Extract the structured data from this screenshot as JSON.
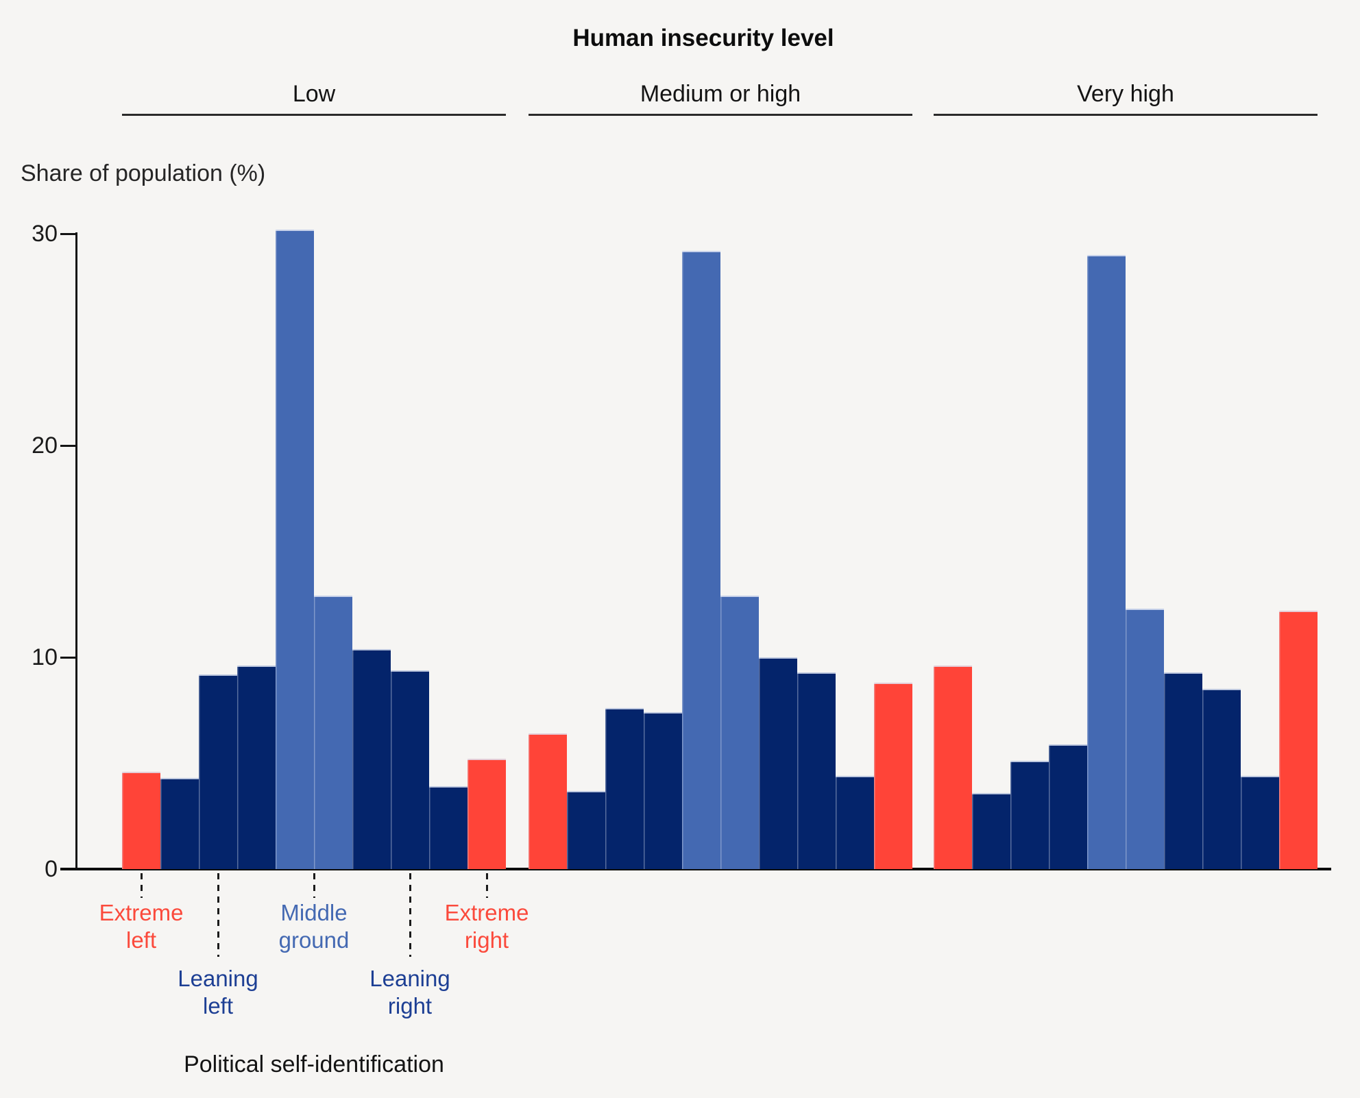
{
  "colors": {
    "red": "#ff4438",
    "navy": "#04246b",
    "blue": "#4469b2",
    "background": "#f6f5f3",
    "axis": "#141414",
    "label_red": "#fb4a3c",
    "label_navy": "#1d3f94",
    "label_blue": "#4469b2",
    "text": "#141414"
  },
  "chart_data": {
    "type": "bar",
    "title": "Human insecurity level",
    "ylabel": "Share of population (%)",
    "xlabel": "Political self-identification",
    "ylim": [
      0,
      30
    ],
    "yticks": [
      0,
      10,
      20,
      30
    ],
    "grid": false,
    "legend": "none",
    "groups": [
      {
        "label": "Low",
        "values": [
          4.6,
          4.3,
          9.2,
          9.6,
          30.2,
          12.9,
          10.4,
          9.4,
          3.9,
          5.2
        ]
      },
      {
        "label": "Medium or high",
        "values": [
          6.4,
          3.7,
          7.6,
          7.4,
          29.2,
          12.9,
          10.0,
          9.3,
          4.4,
          8.8
        ]
      },
      {
        "label": "Very high",
        "values": [
          9.6,
          3.6,
          5.1,
          5.9,
          29.0,
          12.3,
          9.3,
          8.5,
          4.4,
          12.2
        ]
      }
    ],
    "bar_categories": [
      "Extreme left",
      "Leaning left",
      "Leaning left",
      "Leaning left",
      "Middle ground",
      "Middle ground",
      "Leaning right",
      "Leaning right",
      "Leaning right",
      "Extreme right"
    ],
    "bar_colors": [
      "red",
      "navy",
      "navy",
      "navy",
      "blue",
      "blue",
      "navy",
      "navy",
      "navy",
      "red"
    ],
    "position_labels": [
      {
        "text": "Extreme left",
        "color": "label_red",
        "center_index": 0.5,
        "row": "upper"
      },
      {
        "text": "Leaning left",
        "color": "label_navy",
        "center_index": 2.5,
        "row": "lower"
      },
      {
        "text": "Middle ground",
        "color": "label_blue",
        "center_index": 5.0,
        "row": "upper"
      },
      {
        "text": "Leaning right",
        "color": "label_navy",
        "center_index": 7.5,
        "row": "lower"
      },
      {
        "text": "Extreme right",
        "color": "label_red",
        "center_index": 9.5,
        "row": "upper"
      }
    ]
  }
}
